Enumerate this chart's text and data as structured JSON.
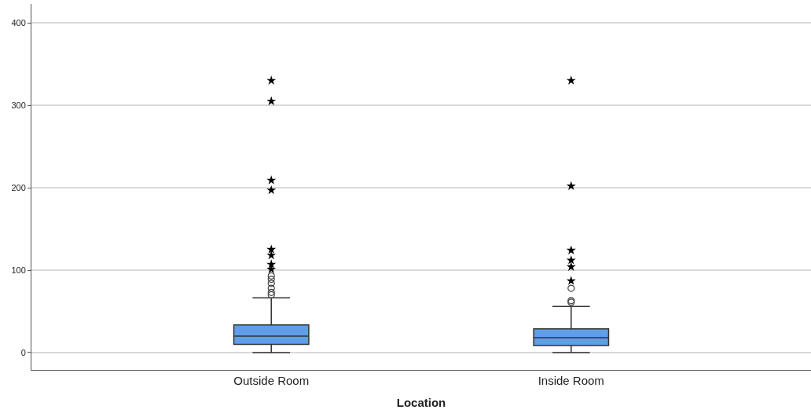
{
  "chart_data": {
    "type": "box",
    "xlabel": "Location",
    "categories": [
      "Outside Room",
      "Inside Room"
    ],
    "series": [
      {
        "color": "#5f9ee8",
        "boxes": [
          {
            "low": 0,
            "q1": 10,
            "median": 20,
            "q3": 33.5,
            "high": 66.4,
            "outliers": [
              93,
              89,
              84,
              78,
              73,
              70
            ]
          },
          {
            "low": 0,
            "q1": 8.6,
            "median": 18,
            "q3": 28.7,
            "high": 56,
            "outliers": [
              78,
              63,
              61
            ]
          }
        ]
      },
      {
        "type": "scatter",
        "marker": "star",
        "color": "#000000",
        "x": [
          "Outside Room",
          "Outside Room",
          "Outside Room",
          "Outside Room",
          "Outside Room",
          "Outside Room",
          "Outside Room",
          "Outside Room",
          "Inside Room",
          "Inside Room",
          "Inside Room",
          "Inside Room",
          "Inside Room",
          "Inside Room"
        ],
        "values": [
          330,
          305,
          209,
          197,
          125,
          118,
          107,
          101,
          330,
          202,
          124,
          112,
          104,
          87
        ]
      }
    ],
    "ylim": [
      -21,
      423
    ],
    "yticks": [
      0,
      100,
      200,
      300,
      400
    ],
    "grid": "y"
  }
}
